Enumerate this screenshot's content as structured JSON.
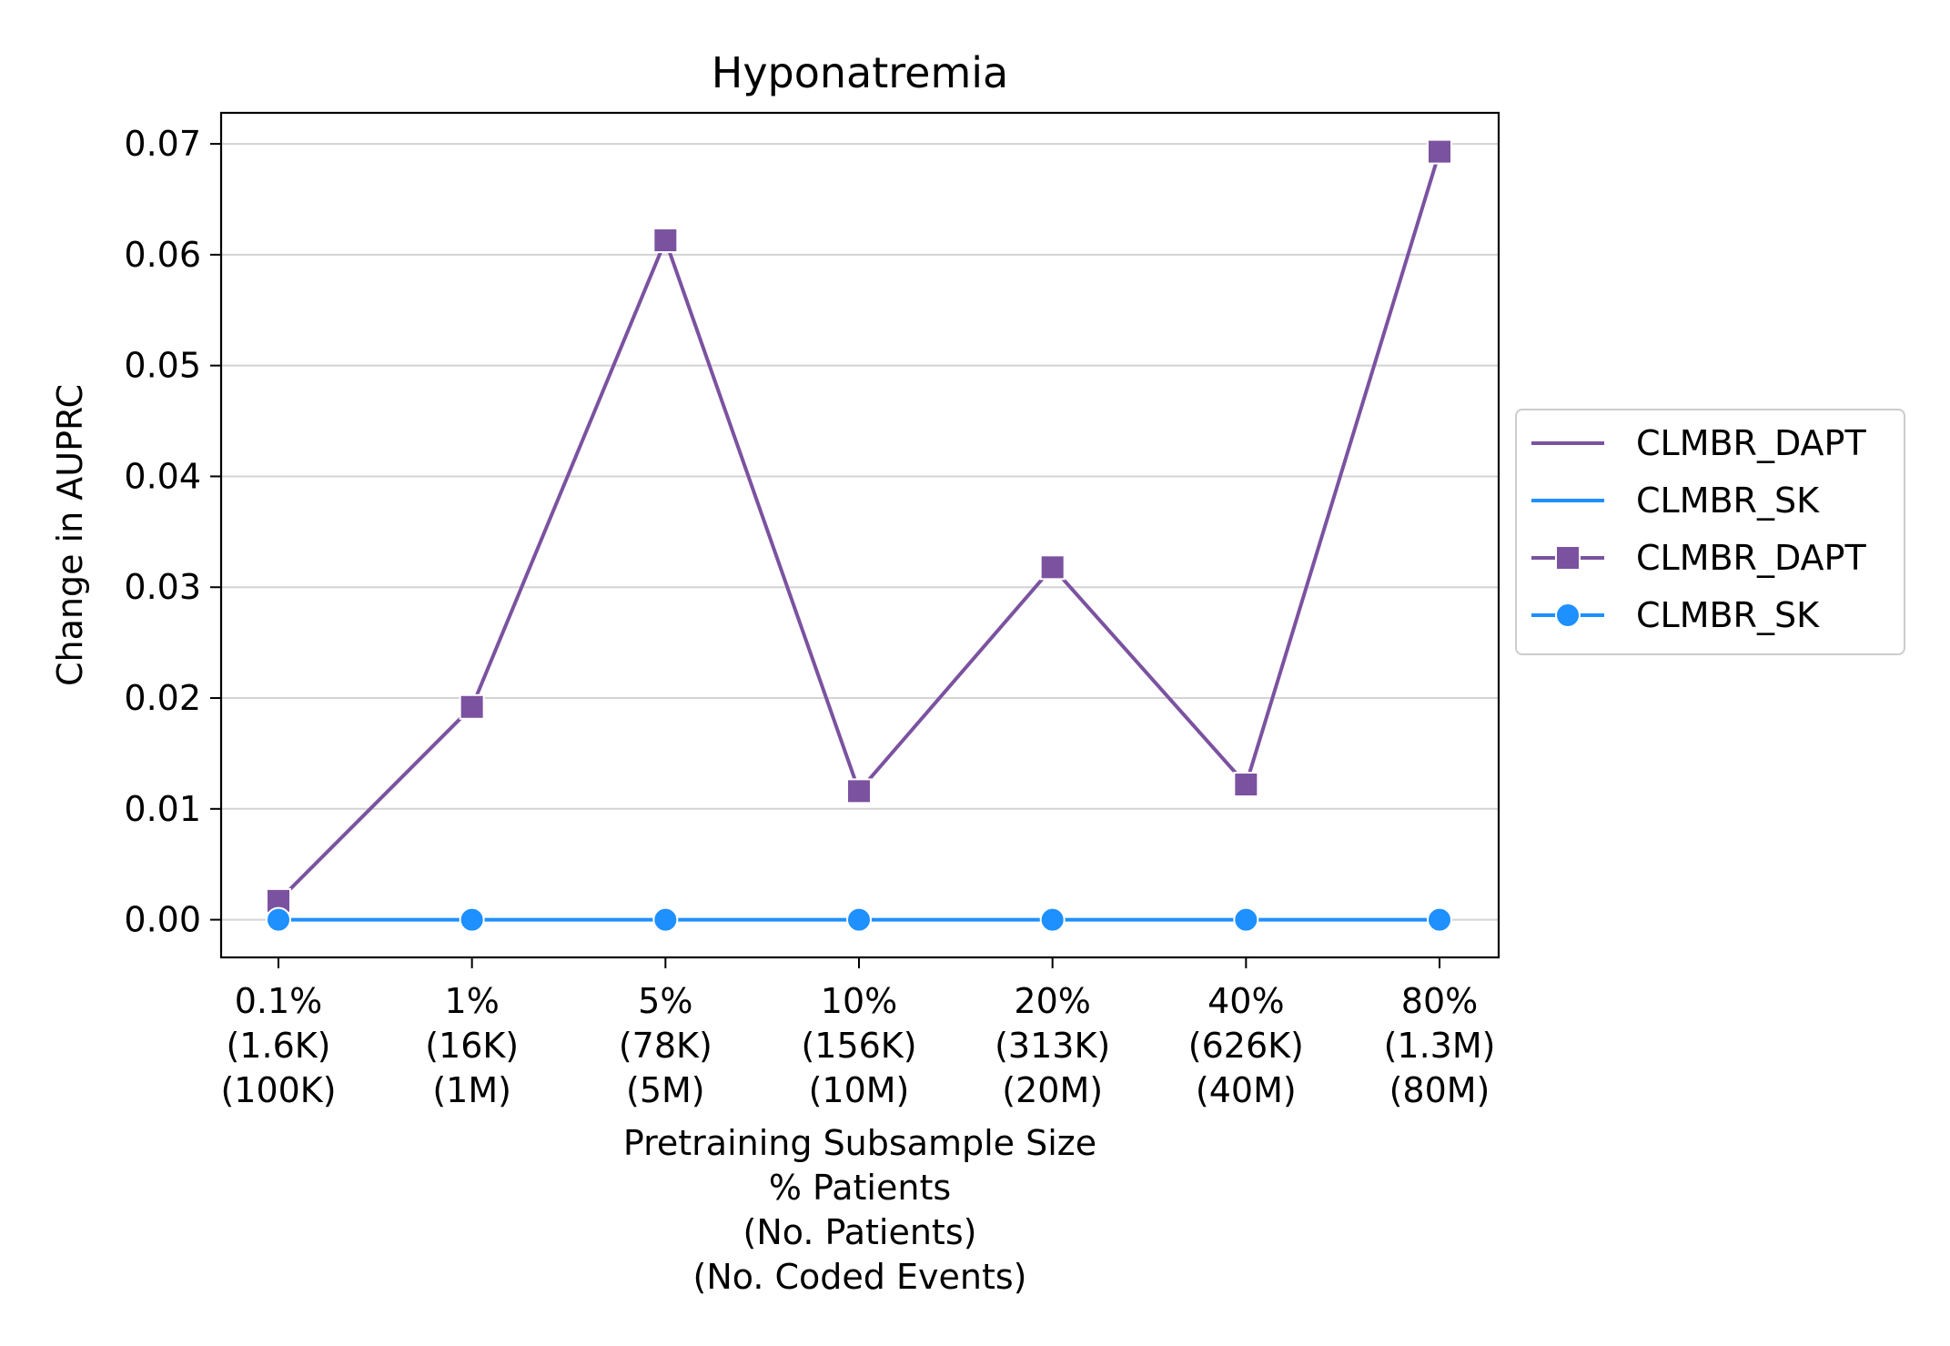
{
  "chart_data": {
    "type": "line",
    "title": "Hyponatremia",
    "xlabel_lines": [
      "Pretraining Subsample Size",
      "% Patients",
      "(No. Patients)",
      "(No. Coded Events)"
    ],
    "ylabel": "Change in AUPRC",
    "categories": [
      [
        "0.1%",
        "(1.6K)",
        "(100K)"
      ],
      [
        "1%",
        "(16K)",
        "(1M)"
      ],
      [
        "5%",
        "(78K)",
        "(5M)"
      ],
      [
        "10%",
        "(156K)",
        "(10M)"
      ],
      [
        "20%",
        "(313K)",
        "(20M)"
      ],
      [
        "40%",
        "(626K)",
        "(40M)"
      ],
      [
        "80%",
        "(1.3M)",
        "(80M)"
      ]
    ],
    "ylim": [
      -0.0034,
      0.0728
    ],
    "yticks": [
      0.0,
      0.01,
      0.02,
      0.03,
      0.04,
      0.05,
      0.06,
      0.07
    ],
    "ytick_labels": [
      "0.00",
      "0.01",
      "0.02",
      "0.03",
      "0.04",
      "0.05",
      "0.06",
      "0.07"
    ],
    "grid": "horizontal",
    "legend_position": "center-right-outside",
    "series": [
      {
        "name": "CLMBR_DAPT",
        "color": "#7b52a0",
        "marker": "square",
        "values": [
          0.0017,
          0.0192,
          0.0613,
          0.0116,
          0.0318,
          0.0122,
          0.0693
        ]
      },
      {
        "name": "CLMBR_SK",
        "color": "#1e90ff",
        "marker": "circle",
        "values": [
          0.0,
          0.0,
          0.0,
          0.0,
          0.0,
          0.0,
          0.0
        ]
      }
    ],
    "legend_entries": [
      {
        "label": "CLMBR_DAPT",
        "color": "#7b52a0",
        "marker": "none"
      },
      {
        "label": "CLMBR_SK",
        "color": "#1e90ff",
        "marker": "none"
      },
      {
        "label": "CLMBR_DAPT",
        "color": "#7b52a0",
        "marker": "square"
      },
      {
        "label": "CLMBR_SK",
        "color": "#1e90ff",
        "marker": "circle"
      }
    ]
  }
}
